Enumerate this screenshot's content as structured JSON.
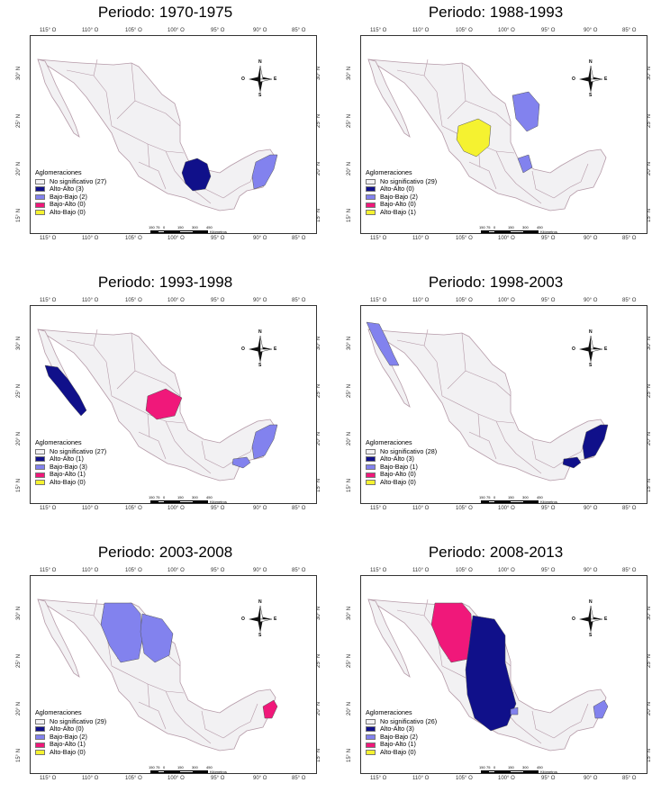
{
  "colors": {
    "no_sig": "#f2f1f3",
    "alto_alto": "#10108a",
    "bajo_bajo": "#8282ee",
    "bajo_alto": "#f0187a",
    "alto_bajo": "#f5f230",
    "border": "#b59aa8"
  },
  "panels": [
    {
      "title": "Periodo: 1970-1975",
      "legend_title": "Aglomeraciones",
      "legend": [
        {
          "label": "No significativo (27)",
          "class": "no_sig"
        },
        {
          "label": "Alto-Alto (3)",
          "class": "alto_alto"
        },
        {
          "label": "Bajo-Bajo (2)",
          "class": "bajo_bajo"
        },
        {
          "label": "Bajo-Alto (0)",
          "class": "bajo_alto"
        },
        {
          "label": "Alto-Bajo (0)",
          "class": "alto_bajo"
        }
      ],
      "highlighted_regions": [
        {
          "region": "central",
          "class": "alto_alto"
        },
        {
          "region": "yucatan",
          "class": "bajo_bajo"
        }
      ]
    },
    {
      "title": "Periodo: 1988-1993",
      "legend_title": "Aglomeraciones",
      "legend": [
        {
          "label": "No significativo (29)",
          "class": "no_sig"
        },
        {
          "label": "Alto-Alto (0)",
          "class": "alto_alto"
        },
        {
          "label": "Bajo-Bajo (2)",
          "class": "bajo_bajo"
        },
        {
          "label": "Bajo-Alto (0)",
          "class": "bajo_alto"
        },
        {
          "label": "Alto-Bajo (1)",
          "class": "alto_bajo"
        }
      ],
      "highlighted_regions": [
        {
          "region": "durango",
          "class": "alto_bajo"
        },
        {
          "region": "tamaulipas_north",
          "class": "bajo_bajo"
        },
        {
          "region": "sanluis",
          "class": "bajo_bajo"
        }
      ]
    },
    {
      "title": "Periodo: 1993-1998",
      "legend_title": "Aglomeraciones",
      "legend": [
        {
          "label": "No significativo (27)",
          "class": "no_sig"
        },
        {
          "label": "Alto-Alto (1)",
          "class": "alto_alto"
        },
        {
          "label": "Bajo-Bajo (3)",
          "class": "bajo_bajo"
        },
        {
          "label": "Bajo-Alto (1)",
          "class": "bajo_alto"
        },
        {
          "label": "Alto-Bajo (0)",
          "class": "alto_bajo"
        }
      ],
      "highlighted_regions": [
        {
          "region": "bcs",
          "class": "alto_alto"
        },
        {
          "region": "zacatecas",
          "class": "bajo_alto"
        },
        {
          "region": "yucatan",
          "class": "bajo_bajo"
        },
        {
          "region": "tabasco",
          "class": "bajo_bajo"
        }
      ]
    },
    {
      "title": "Periodo: 1998-2003",
      "legend_title": "Aglomeraciones",
      "legend": [
        {
          "label": "No significativo (28)",
          "class": "no_sig"
        },
        {
          "label": "Alto-Alto (3)",
          "class": "alto_alto"
        },
        {
          "label": "Bajo-Bajo (1)",
          "class": "bajo_bajo"
        },
        {
          "label": "Bajo-Alto (0)",
          "class": "bajo_alto"
        },
        {
          "label": "Alto-Bajo (0)",
          "class": "alto_bajo"
        }
      ],
      "highlighted_regions": [
        {
          "region": "bc",
          "class": "bajo_bajo"
        },
        {
          "region": "yucatan",
          "class": "alto_alto"
        },
        {
          "region": "tabasco",
          "class": "alto_alto"
        }
      ]
    },
    {
      "title": "Periodo: 2003-2008",
      "legend_title": "Aglomeraciones",
      "legend": [
        {
          "label": "No significativo (29)",
          "class": "no_sig"
        },
        {
          "label": "Alto-Alto (0)",
          "class": "alto_alto"
        },
        {
          "label": "Bajo-Bajo (2)",
          "class": "bajo_bajo"
        },
        {
          "label": "Bajo-Alto (1)",
          "class": "bajo_alto"
        },
        {
          "label": "Alto-Bajo (0)",
          "class": "alto_bajo"
        }
      ],
      "highlighted_regions": [
        {
          "region": "chihuahua",
          "class": "bajo_bajo"
        },
        {
          "region": "coahuila",
          "class": "bajo_bajo"
        },
        {
          "region": "yucatan_east",
          "class": "bajo_alto"
        }
      ]
    },
    {
      "title": "Periodo: 2008-2013",
      "legend_title": "Aglomeraciones",
      "legend": [
        {
          "label": "No significativo (26)",
          "class": "no_sig"
        },
        {
          "label": "Alto-Alto (3)",
          "class": "alto_alto"
        },
        {
          "label": "Bajo-Bajo (2)",
          "class": "bajo_bajo"
        },
        {
          "label": "Bajo-Alto (1)",
          "class": "bajo_alto"
        },
        {
          "label": "Alto-Bajo (0)",
          "class": "alto_bajo"
        }
      ],
      "highlighted_regions": [
        {
          "region": "chihuahua",
          "class": "bajo_alto"
        },
        {
          "region": "coahuila_big",
          "class": "alto_alto"
        },
        {
          "region": "yucatan_east",
          "class": "bajo_bajo"
        },
        {
          "region": "small_center",
          "class": "bajo_bajo"
        }
      ]
    }
  ],
  "axis_labels": {
    "longitudes": [
      "115° O",
      "110° O",
      "105° O",
      "100° O",
      "95° O",
      "90° O",
      "85° O"
    ],
    "latitudes": [
      "30° N",
      "25° N",
      "20° N",
      "15° N"
    ]
  },
  "compass": {
    "n": "N",
    "s": "S",
    "e": "E",
    "o": "O"
  },
  "scale": {
    "ticks": [
      "150",
      "75",
      "0",
      "150",
      "300",
      "450"
    ],
    "unit": "Kilómetros"
  }
}
